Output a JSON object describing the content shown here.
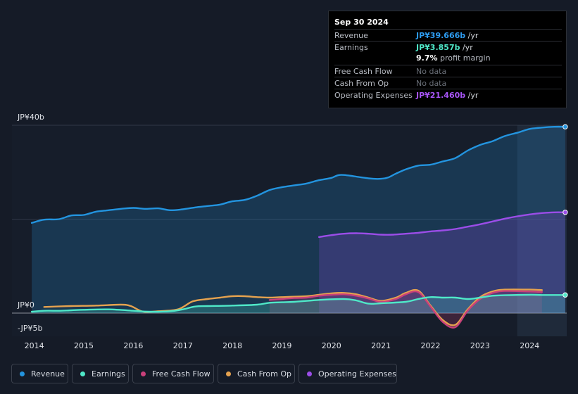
{
  "colors": {
    "revenue": "#2394df",
    "earnings": "#4fe8c8",
    "free_cash_flow": "#c9407a",
    "cash_from_op": "#e5a24f",
    "operating_expenses": "#9b4de8",
    "background": "#151b27"
  },
  "tooltip": {
    "date": "Sep 30 2024",
    "rows": [
      {
        "label": "Revenue",
        "value": "JP¥39.666b",
        "suffix": " /yr",
        "color": "#2d9cf0"
      },
      {
        "label": "Earnings",
        "value": "JP¥3.857b",
        "suffix": " /yr",
        "color": "#4fe8c8"
      },
      {
        "label": "Free Cash Flow",
        "value": "No data",
        "suffix": "",
        "color": "#6a6f78"
      },
      {
        "label": "Cash From Op",
        "value": "No data",
        "suffix": "",
        "color": "#6a6f78"
      },
      {
        "label": "Operating Expenses",
        "value": "JP¥21.460b",
        "suffix": " /yr",
        "color": "#a855f7"
      }
    ],
    "profit_margin_value": "9.7%",
    "profit_margin_label": " profit margin"
  },
  "legend": [
    {
      "label": "Revenue",
      "color": "#2394df"
    },
    {
      "label": "Earnings",
      "color": "#4fe8c8"
    },
    {
      "label": "Free Cash Flow",
      "color": "#c9407a"
    },
    {
      "label": "Cash From Op",
      "color": "#e5a24f"
    },
    {
      "label": "Operating Expenses",
      "color": "#9b4de8"
    }
  ],
  "chart_data": {
    "type": "area",
    "title": "",
    "xlabel": "",
    "ylabel": "",
    "ylim": [
      -5,
      40
    ],
    "y_tick_labels": [
      {
        "value": 40,
        "label": "JP¥40b"
      },
      {
        "value": 0,
        "label": "JP¥0"
      },
      {
        "value": -5,
        "label": "-JP¥5b"
      }
    ],
    "x_ticks": [
      {
        "value": 2014,
        "label": "2014"
      },
      {
        "value": 2015,
        "label": "2015"
      },
      {
        "value": 2016,
        "label": "2016"
      },
      {
        "value": 2017,
        "label": "2017"
      },
      {
        "value": 2018,
        "label": "2018"
      },
      {
        "value": 2019,
        "label": "2019"
      },
      {
        "value": 2020,
        "label": "2020"
      },
      {
        "value": 2021,
        "label": "2021"
      },
      {
        "value": 2022,
        "label": "2022"
      },
      {
        "value": 2023,
        "label": "2023"
      },
      {
        "value": 2024,
        "label": "2024"
      }
    ],
    "xlim": [
      2013.55,
      2024.75
    ],
    "highlight_from": 2023.75,
    "series": [
      {
        "name": "Revenue",
        "key": "revenue",
        "fill": true,
        "points": [
          [
            2013.95,
            19.2
          ],
          [
            2014.2,
            19.9
          ],
          [
            2014.5,
            20.0
          ],
          [
            2014.75,
            20.8
          ],
          [
            2015.0,
            20.9
          ],
          [
            2015.25,
            21.6
          ],
          [
            2015.5,
            21.9
          ],
          [
            2015.75,
            22.2
          ],
          [
            2016.0,
            22.4
          ],
          [
            2016.25,
            22.2
          ],
          [
            2016.5,
            22.3
          ],
          [
            2016.75,
            21.9
          ],
          [
            2017.0,
            22.1
          ],
          [
            2017.25,
            22.5
          ],
          [
            2017.5,
            22.8
          ],
          [
            2017.75,
            23.1
          ],
          [
            2018.0,
            23.8
          ],
          [
            2018.25,
            24.1
          ],
          [
            2018.5,
            25.0
          ],
          [
            2018.75,
            26.2
          ],
          [
            2019.0,
            26.8
          ],
          [
            2019.25,
            27.2
          ],
          [
            2019.5,
            27.6
          ],
          [
            2019.75,
            28.3
          ],
          [
            2020.0,
            28.8
          ],
          [
            2020.15,
            29.4
          ],
          [
            2020.35,
            29.3
          ],
          [
            2020.6,
            28.9
          ],
          [
            2020.85,
            28.6
          ],
          [
            2021.0,
            28.6
          ],
          [
            2021.15,
            28.9
          ],
          [
            2021.3,
            29.7
          ],
          [
            2021.5,
            30.6
          ],
          [
            2021.75,
            31.4
          ],
          [
            2022.0,
            31.6
          ],
          [
            2022.25,
            32.3
          ],
          [
            2022.5,
            33.0
          ],
          [
            2022.75,
            34.6
          ],
          [
            2023.0,
            35.8
          ],
          [
            2023.25,
            36.6
          ],
          [
            2023.5,
            37.7
          ],
          [
            2023.75,
            38.4
          ],
          [
            2024.0,
            39.2
          ],
          [
            2024.25,
            39.5
          ],
          [
            2024.5,
            39.666
          ],
          [
            2024.72,
            39.666
          ]
        ]
      },
      {
        "name": "Operating Expenses",
        "key": "operating_expenses",
        "fill": true,
        "points": [
          [
            2019.75,
            16.2
          ],
          [
            2020.0,
            16.6
          ],
          [
            2020.25,
            16.9
          ],
          [
            2020.5,
            17.0
          ],
          [
            2020.75,
            16.9
          ],
          [
            2021.0,
            16.7
          ],
          [
            2021.25,
            16.7
          ],
          [
            2021.5,
            16.9
          ],
          [
            2021.75,
            17.1
          ],
          [
            2022.0,
            17.4
          ],
          [
            2022.25,
            17.6
          ],
          [
            2022.5,
            17.9
          ],
          [
            2022.75,
            18.4
          ],
          [
            2023.0,
            18.9
          ],
          [
            2023.25,
            19.5
          ],
          [
            2023.5,
            20.1
          ],
          [
            2023.75,
            20.6
          ],
          [
            2024.0,
            21.0
          ],
          [
            2024.25,
            21.3
          ],
          [
            2024.5,
            21.46
          ],
          [
            2024.72,
            21.46
          ]
        ]
      },
      {
        "name": "Cash From Op",
        "key": "cash_from_op",
        "fill": false,
        "points": [
          [
            2014.2,
            1.3
          ],
          [
            2014.75,
            1.5
          ],
          [
            2015.25,
            1.6
          ],
          [
            2015.75,
            1.8
          ],
          [
            2015.95,
            1.5
          ],
          [
            2016.2,
            0.3
          ],
          [
            2016.5,
            0.4
          ],
          [
            2016.9,
            0.8
          ],
          [
            2017.2,
            2.5
          ],
          [
            2017.5,
            3.0
          ],
          [
            2017.75,
            3.3
          ],
          [
            2018.0,
            3.6
          ],
          [
            2018.25,
            3.6
          ],
          [
            2018.5,
            3.4
          ],
          [
            2018.75,
            3.3
          ],
          [
            2019.0,
            3.4
          ],
          [
            2019.5,
            3.6
          ],
          [
            2019.75,
            3.9
          ],
          [
            2020.0,
            4.2
          ],
          [
            2020.25,
            4.3
          ],
          [
            2020.5,
            4.0
          ],
          [
            2020.75,
            3.3
          ],
          [
            2021.0,
            2.6
          ],
          [
            2021.3,
            3.3
          ],
          [
            2021.5,
            4.3
          ],
          [
            2021.75,
            4.8
          ],
          [
            2022.0,
            1.6
          ],
          [
            2022.25,
            -1.5
          ],
          [
            2022.5,
            -2.5
          ],
          [
            2022.75,
            0.8
          ],
          [
            2023.0,
            3.4
          ],
          [
            2023.25,
            4.6
          ],
          [
            2023.5,
            5.0
          ],
          [
            2024.0,
            5.0
          ],
          [
            2024.25,
            4.9
          ]
        ]
      },
      {
        "name": "Free Cash Flow",
        "key": "free_cash_flow",
        "fill": true,
        "points": [
          [
            2018.75,
            2.8
          ],
          [
            2019.0,
            3.0
          ],
          [
            2019.25,
            3.2
          ],
          [
            2019.5,
            3.3
          ],
          [
            2019.75,
            3.7
          ],
          [
            2020.0,
            3.9
          ],
          [
            2020.25,
            4.0
          ],
          [
            2020.5,
            3.7
          ],
          [
            2020.75,
            3.1
          ],
          [
            2021.0,
            2.4
          ],
          [
            2021.3,
            3.0
          ],
          [
            2021.5,
            4.0
          ],
          [
            2021.75,
            4.5
          ],
          [
            2022.0,
            1.4
          ],
          [
            2022.25,
            -1.9
          ],
          [
            2022.5,
            -3.0
          ],
          [
            2022.75,
            0.5
          ],
          [
            2023.0,
            3.0
          ],
          [
            2023.25,
            4.3
          ],
          [
            2023.5,
            4.7
          ],
          [
            2024.0,
            4.6
          ],
          [
            2024.25,
            4.5
          ]
        ]
      },
      {
        "name": "Earnings",
        "key": "earnings",
        "fill": true,
        "points": [
          [
            2013.95,
            0.3
          ],
          [
            2014.2,
            0.5
          ],
          [
            2014.5,
            0.5
          ],
          [
            2014.75,
            0.6
          ],
          [
            2015.0,
            0.7
          ],
          [
            2015.5,
            0.8
          ],
          [
            2016.0,
            0.5
          ],
          [
            2016.3,
            0.3
          ],
          [
            2016.75,
            0.4
          ],
          [
            2017.0,
            0.8
          ],
          [
            2017.25,
            1.4
          ],
          [
            2017.5,
            1.5
          ],
          [
            2018.0,
            1.6
          ],
          [
            2018.5,
            1.8
          ],
          [
            2018.75,
            2.2
          ],
          [
            2019.0,
            2.3
          ],
          [
            2019.25,
            2.4
          ],
          [
            2019.75,
            2.8
          ],
          [
            2020.25,
            3.0
          ],
          [
            2020.5,
            2.7
          ],
          [
            2020.75,
            2.0
          ],
          [
            2021.0,
            2.1
          ],
          [
            2021.5,
            2.4
          ],
          [
            2021.75,
            3.0
          ],
          [
            2022.0,
            3.4
          ],
          [
            2022.25,
            3.3
          ],
          [
            2022.5,
            3.3
          ],
          [
            2022.75,
            3.0
          ],
          [
            2023.0,
            3.3
          ],
          [
            2023.25,
            3.7
          ],
          [
            2023.5,
            3.8
          ],
          [
            2024.0,
            3.9
          ],
          [
            2024.25,
            3.857
          ],
          [
            2024.72,
            3.857
          ]
        ]
      }
    ]
  }
}
